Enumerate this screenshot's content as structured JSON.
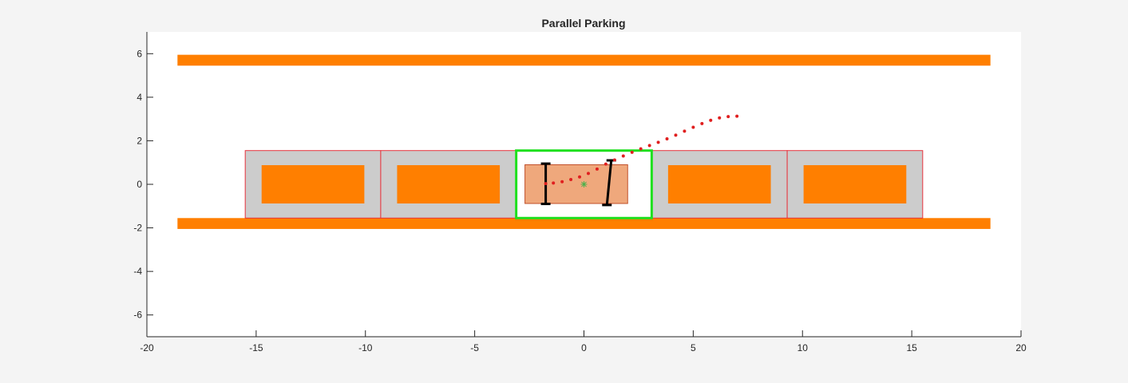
{
  "chart_data": {
    "type": "scatter",
    "title": "Parallel Parking",
    "xlabel": "",
    "ylabel": "",
    "xlim": [
      -20,
      20
    ],
    "ylim": [
      -7,
      7
    ],
    "x_ticks": [
      -20,
      -15,
      -10,
      -5,
      0,
      5,
      10,
      15,
      20
    ],
    "y_ticks": [
      -6,
      -4,
      -2,
      0,
      2,
      4,
      6
    ],
    "x_tick_labels": [
      "-20",
      "-15",
      "-10",
      "-5",
      "0",
      "5",
      "10",
      "15",
      "20"
    ],
    "y_tick_labels": [
      "-6",
      "-4",
      "-2",
      "0",
      "2",
      "4",
      "6"
    ],
    "grid": false,
    "colors": {
      "figure_bg": "#f4f4f4",
      "axes_bg": "#ffffff",
      "curb": "#ff7f00",
      "parked_slot": "#cccccc",
      "slot_outline": "#e8323c",
      "target_slot_outline": "#1ee01e",
      "ego_vehicle": "#efa87c",
      "ego_outline": "#c0502a",
      "path": "#e01f1f",
      "center_marker": "#4cb24c",
      "axle": "#000000"
    },
    "curbs": [
      {
        "name": "top-curb",
        "x": [
          -18.6,
          18.6
        ],
        "y": [
          5.45,
          5.95
        ]
      },
      {
        "name": "bottom-curb",
        "x": [
          -18.6,
          18.6
        ],
        "y": [
          -2.05,
          -1.55
        ]
      }
    ],
    "parking_slots": [
      {
        "x": [
          -15.5,
          -9.3
        ],
        "y": [
          -1.55,
          1.55
        ],
        "occupied": true
      },
      {
        "x": [
          -9.3,
          -3.1
        ],
        "y": [
          -1.55,
          1.55
        ],
        "occupied": true
      },
      {
        "x": [
          -3.1,
          3.1
        ],
        "y": [
          -1.55,
          1.55
        ],
        "occupied": false,
        "target": true
      },
      {
        "x": [
          3.1,
          9.3
        ],
        "y": [
          -1.55,
          1.55
        ],
        "occupied": true
      },
      {
        "x": [
          9.3,
          15.5
        ],
        "y": [
          -1.55,
          1.55
        ],
        "occupied": true
      }
    ],
    "parked_cars": [
      {
        "x": [
          -14.75,
          -10.05
        ],
        "y": [
          -0.88,
          0.88
        ]
      },
      {
        "x": [
          -8.55,
          -3.85
        ],
        "y": [
          -0.88,
          0.88
        ]
      },
      {
        "x": [
          3.85,
          8.55
        ],
        "y": [
          -0.88,
          0.88
        ]
      },
      {
        "x": [
          10.05,
          14.75
        ],
        "y": [
          -0.88,
          0.88
        ]
      }
    ],
    "ego_vehicle": {
      "x": [
        -2.7,
        2.0
      ],
      "y": [
        -0.88,
        0.9
      ],
      "center": [
        0.0,
        0.0
      ]
    },
    "axles": [
      {
        "x": [
          -1.75,
          -1.75
        ],
        "y": [
          -0.9,
          0.95
        ]
      },
      {
        "x": [
          1.05,
          1.25
        ],
        "y": [
          -0.95,
          1.1
        ]
      }
    ],
    "path": {
      "x": [
        -1.75,
        -1.4,
        -1.0,
        -0.6,
        -0.2,
        0.2,
        0.6,
        1.0,
        1.4,
        1.8,
        2.2,
        2.6,
        3.0,
        3.4,
        3.8,
        4.2,
        4.6,
        5.0,
        5.4,
        5.8,
        6.2,
        6.6,
        7.0
      ],
      "y": [
        0.03,
        0.06,
        0.12,
        0.22,
        0.34,
        0.5,
        0.7,
        0.93,
        1.12,
        1.3,
        1.47,
        1.63,
        1.78,
        1.93,
        2.09,
        2.26,
        2.44,
        2.62,
        2.79,
        2.94,
        3.05,
        3.11,
        3.13
      ]
    }
  }
}
